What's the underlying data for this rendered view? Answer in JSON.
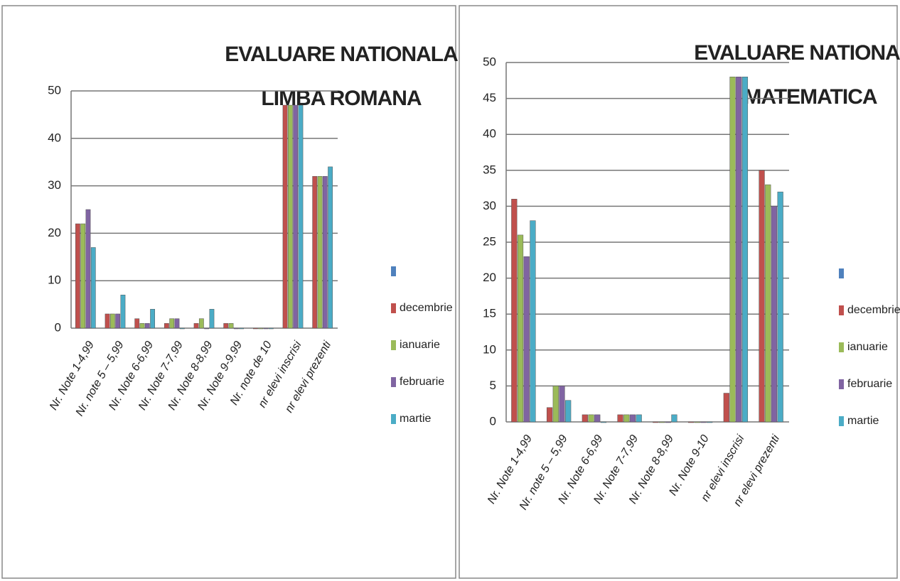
{
  "chart_data": [
    {
      "type": "bar",
      "title": "EVALUARE NATIONALA",
      "subtitle": "LIMBA ROMANA",
      "categories": [
        "Nr. Note 1-4,99",
        "Nr. note 5 – 5,99",
        "Nr. Note 6-6,99",
        "Nr. Note 7-7,99",
        "Nr. Note 8-8,99",
        "Nr. Note 9-9,99",
        "Nr. note de  10",
        "nr elevi inscrisi",
        "nr elevi prezenti"
      ],
      "series": [
        {
          "name": null,
          "color": "#4f81bd",
          "values": [
            null,
            null,
            null,
            null,
            null,
            null,
            null,
            null,
            null
          ]
        },
        {
          "name": "decembrie",
          "color": "#c0504d",
          "values": [
            22,
            3,
            2,
            1,
            1,
            1,
            0,
            47,
            32
          ]
        },
        {
          "name": "ianuarie",
          "color": "#9bbb59",
          "values": [
            22,
            3,
            1,
            2,
            2,
            1,
            0,
            47,
            32
          ]
        },
        {
          "name": "februarie",
          "color": "#8064a2",
          "values": [
            25,
            3,
            1,
            2,
            0,
            0,
            0,
            47,
            32
          ]
        },
        {
          "name": "martie",
          "color": "#4bacc6",
          "values": [
            17,
            7,
            4,
            0,
            4,
            0,
            0,
            47,
            34
          ]
        }
      ],
      "ylim": [
        0,
        50
      ],
      "yticks": [
        0,
        10,
        20,
        30,
        40,
        50
      ],
      "grid": true
    },
    {
      "type": "bar",
      "title": "EVALUARE NATIONALA",
      "subtitle": "MATEMATICA",
      "categories": [
        "Nr. Note 1-4,99",
        "Nr. note 5 – 5,99",
        "Nr. Note 6-6,99",
        "Nr. Note 7-7,99",
        "Nr. Note 8-8,99",
        "Nr. Note 9-10",
        "nr elevi inscrisi",
        "nr elevi prezenti"
      ],
      "series": [
        {
          "name": null,
          "color": "#4f81bd",
          "values": [
            null,
            null,
            null,
            null,
            null,
            null,
            null,
            null
          ]
        },
        {
          "name": "decembrie",
          "color": "#c0504d",
          "values": [
            31,
            2,
            1,
            1,
            0,
            0,
            4,
            35
          ]
        },
        {
          "name": "ianuarie",
          "color": "#9bbb59",
          "values": [
            26,
            5,
            1,
            1,
            0,
            0,
            48,
            33
          ]
        },
        {
          "name": "februarie",
          "color": "#8064a2",
          "values": [
            23,
            5,
            1,
            1,
            0,
            0,
            48,
            30
          ]
        },
        {
          "name": "martie",
          "color": "#4bacc6",
          "values": [
            28,
            3,
            0,
            1,
            1,
            0,
            48,
            32
          ]
        }
      ],
      "ylim": [
        0,
        50
      ],
      "yticks": [
        0,
        5,
        10,
        15,
        20,
        25,
        30,
        35,
        40,
        45,
        50
      ],
      "grid": true
    }
  ]
}
